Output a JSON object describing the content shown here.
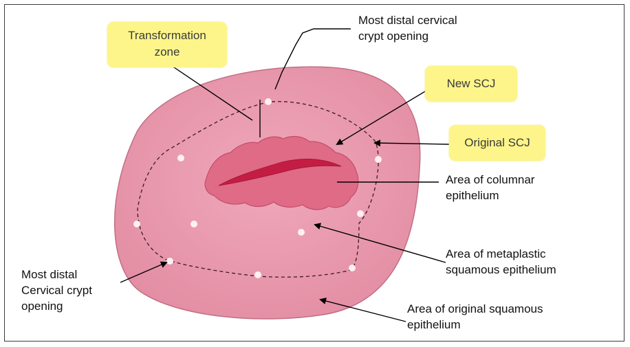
{
  "labels": {
    "transformation_zone": "Transformation\nzone",
    "most_distal_crypt_top": "Most distal cervical\ncrypt opening",
    "new_scj": "New SCJ",
    "original_scj": "Original SCJ",
    "columnar": "Area of columnar\nepithelium",
    "metaplastic": "Area of metaplastic\nsquamous epithelium",
    "most_distal_crypt_left": "Most distal\nCervical crypt\nopening",
    "original_squamous": "Area of original squamous\nepithelium"
  },
  "colors": {
    "cervix": "#ec9cb0",
    "columnar": "#df6b86",
    "os": "#c41d44",
    "highlight": "#fdf58a",
    "crypt_opening": "#fdf0f3"
  }
}
